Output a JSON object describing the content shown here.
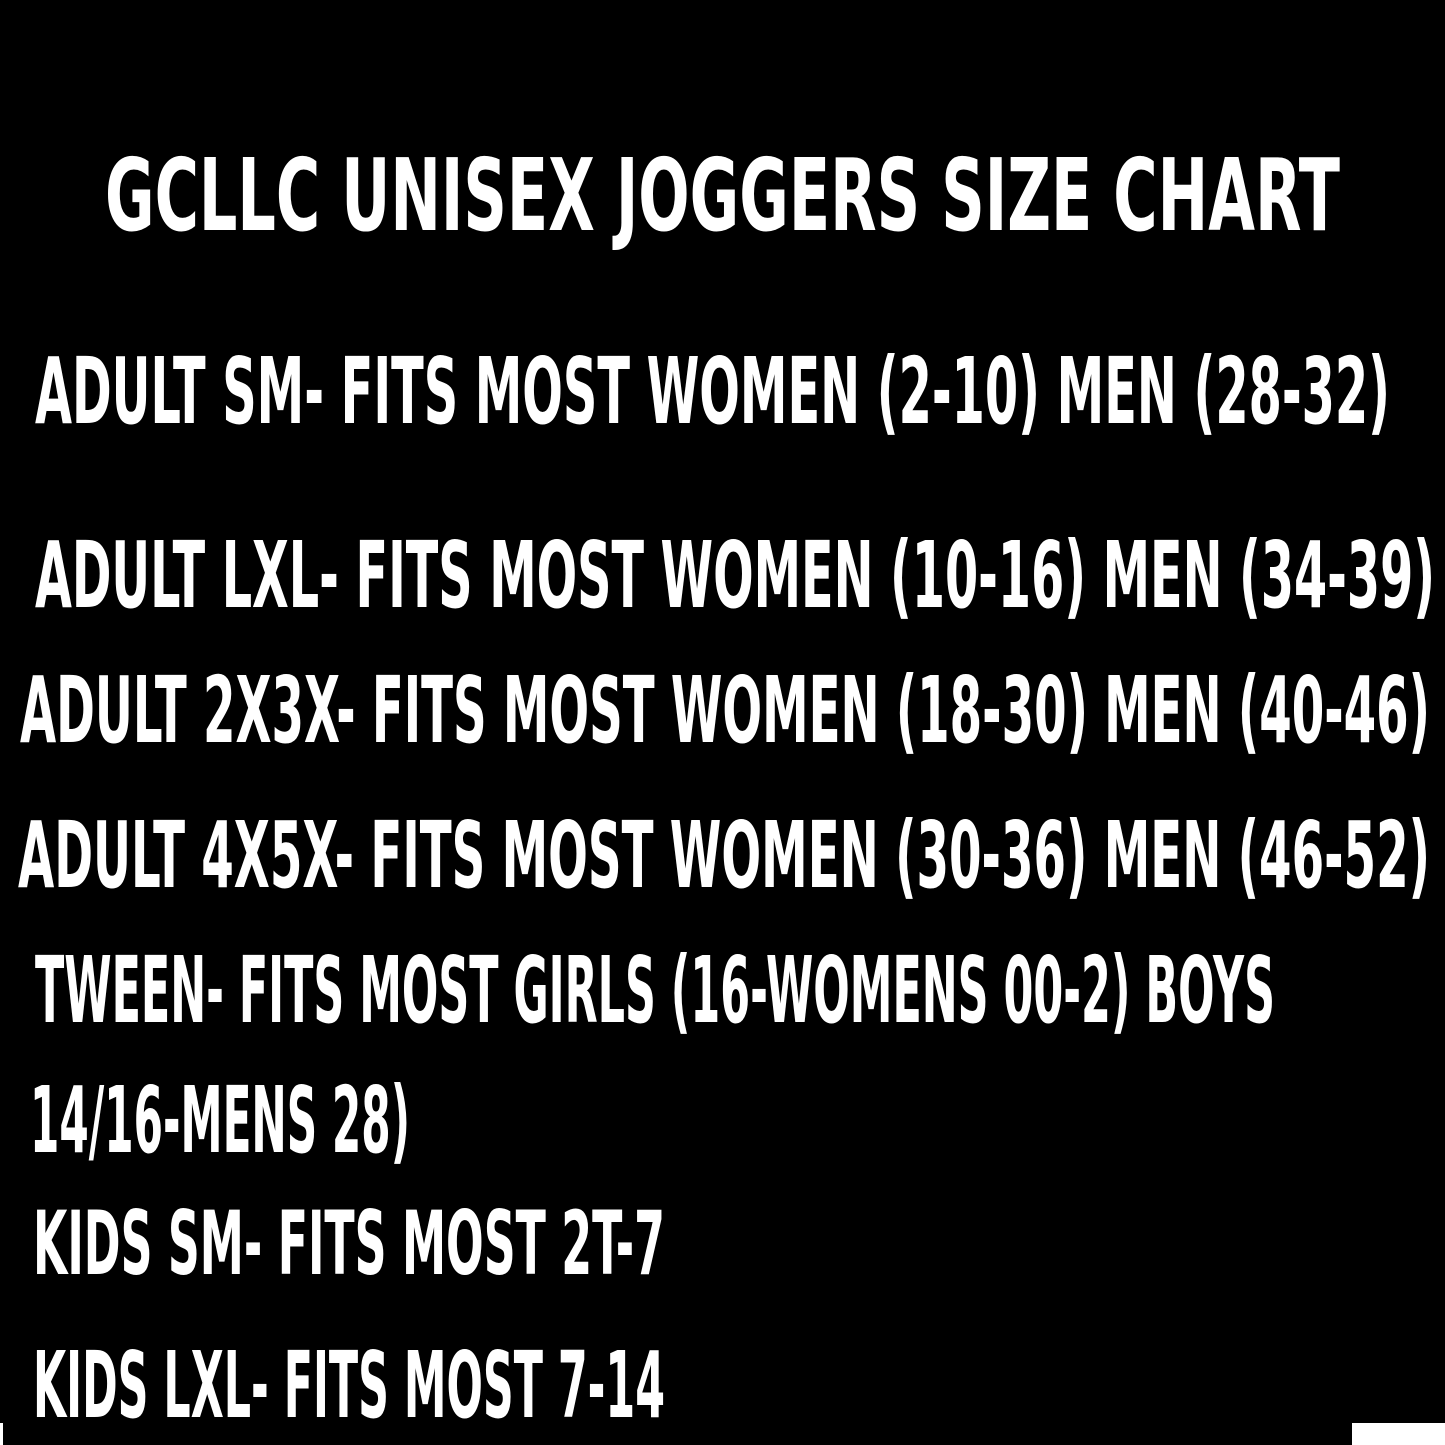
{
  "title": "GCLLC UNISEX JOGGERS SIZE CHART",
  "sizes": [
    "ADULT SM- FITS MOST WOMEN (2-10) MEN (28-32)",
    "ADULT LXL- FITS MOST WOMEN (10-16) MEN (34-39)",
    "ADULT 2X3X- FITS MOST WOMEN (18-30) MEN (40-46)",
    "ADULT 4X5X- FITS MOST WOMEN (30-36) MEN (46-52)",
    "TWEEN- FITS MOST GIRLS (16-WOMENS 00-2) BOYS",
    "14/16-MENS 28)",
    "KIDS SM- FITS MOST 2T-7",
    "KIDS LXL- FITS MOST 7-14"
  ],
  "colors": {
    "background": "#000000",
    "text": "#ffffff"
  }
}
